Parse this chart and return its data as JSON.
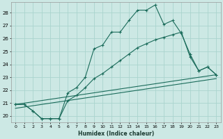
{
  "xlabel": "Humidex (Indice chaleur)",
  "bg_color": "#cce8e4",
  "grid_color": "#aad4ce",
  "line_color": "#1a6b5a",
  "xlim": [
    -0.5,
    23.5
  ],
  "ylim": [
    19.5,
    28.8
  ],
  "yticks": [
    20,
    21,
    22,
    23,
    24,
    25,
    26,
    27,
    28
  ],
  "xticks": [
    0,
    1,
    2,
    3,
    4,
    5,
    6,
    7,
    8,
    9,
    10,
    11,
    12,
    13,
    14,
    15,
    16,
    17,
    18,
    19,
    20,
    21,
    22,
    23
  ],
  "line1_x": [
    0,
    1,
    2,
    3,
    4,
    5,
    6,
    7,
    8,
    9,
    10,
    11,
    12,
    13,
    14,
    15,
    16,
    17,
    18,
    19,
    20,
    21,
    22,
    23
  ],
  "line1_y": [
    20.9,
    20.9,
    20.4,
    19.8,
    19.8,
    19.8,
    21.8,
    22.2,
    23.0,
    25.2,
    25.5,
    26.5,
    26.5,
    27.4,
    28.2,
    28.2,
    28.6,
    27.1,
    27.4,
    26.4,
    24.8,
    23.5,
    23.8,
    23.2
  ],
  "line2_x": [
    0,
    1,
    2,
    3,
    4,
    5,
    6,
    7,
    8,
    9,
    10,
    11,
    12,
    13,
    14,
    15,
    16,
    17,
    18,
    19,
    20,
    21,
    22,
    23
  ],
  "line2_y": [
    20.9,
    20.9,
    20.4,
    19.8,
    19.8,
    19.8,
    21.2,
    21.6,
    22.2,
    22.9,
    23.3,
    23.8,
    24.3,
    24.8,
    25.3,
    25.6,
    25.9,
    26.1,
    26.3,
    26.5,
    24.6,
    23.5,
    23.8,
    23.2
  ],
  "line3_x": [
    0,
    23
  ],
  "line3_y": [
    20.9,
    23.2
  ],
  "line4_x": [
    0,
    23
  ],
  "line4_y": [
    20.6,
    22.9
  ]
}
